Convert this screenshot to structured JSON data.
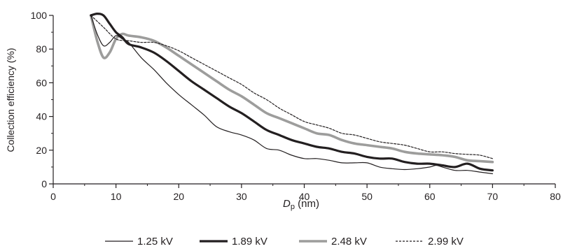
{
  "chart_data": {
    "type": "line",
    "title": "",
    "xlabel_main": "D",
    "xlabel_sub": "p",
    "xlabel_unit": " (nm)",
    "ylabel": "Collection efficiency (%)",
    "xlim": [
      0,
      80
    ],
    "ylim": [
      0,
      100
    ],
    "xticks": [
      0,
      10,
      20,
      30,
      40,
      50,
      60,
      70,
      80
    ],
    "yticks": [
      0,
      20,
      40,
      60,
      80,
      100
    ],
    "grid": false,
    "legend_position": "bottom",
    "series": [
      {
        "name": "1.25 kV",
        "color": "#231f20",
        "style": "thin",
        "x": [
          6,
          7,
          8,
          9,
          10,
          11,
          12,
          14,
          16,
          18,
          20,
          22,
          24,
          26,
          28,
          30,
          32,
          34,
          36,
          38,
          40,
          42,
          44,
          46,
          48,
          50,
          52,
          54,
          56,
          58,
          60,
          61,
          62,
          64,
          66,
          68,
          70
        ],
        "y": [
          100,
          89,
          82,
          84,
          88,
          86,
          84,
          75,
          68,
          60,
          53,
          47,
          41,
          34,
          31,
          29,
          26,
          21,
          20,
          17,
          15,
          15,
          14,
          12.5,
          12.5,
          12.5,
          10,
          9,
          8.5,
          9,
          10,
          11,
          10,
          8,
          8,
          7,
          6
        ]
      },
      {
        "name": "1.89 kV",
        "color": "#231f20",
        "style": "thick",
        "x": [
          6,
          7,
          8,
          9,
          10,
          11,
          12,
          14,
          16,
          18,
          20,
          22,
          24,
          26,
          28,
          30,
          32,
          34,
          36,
          38,
          40,
          42,
          44,
          46,
          48,
          50,
          52,
          54,
          56,
          58,
          60,
          62,
          64,
          66,
          68,
          70
        ],
        "y": [
          100,
          101,
          100,
          95,
          90,
          87,
          83,
          81,
          78,
          73,
          67,
          61,
          56,
          51,
          46,
          42,
          37,
          32,
          29,
          26,
          24,
          22,
          21,
          19,
          18,
          16,
          15,
          15,
          13,
          12,
          12,
          11,
          10,
          12,
          9,
          8
        ]
      },
      {
        "name": "2.48 kV",
        "color": "#9d9d9c",
        "style": "thick",
        "x": [
          6,
          7,
          8,
          9,
          10,
          11,
          12,
          14,
          16,
          18,
          20,
          22,
          24,
          26,
          28,
          30,
          32,
          34,
          36,
          38,
          40,
          42,
          44,
          46,
          48,
          50,
          52,
          54,
          56,
          58,
          60,
          62,
          64,
          66,
          68,
          70
        ],
        "y": [
          100,
          85,
          75,
          78,
          86,
          89,
          88,
          87,
          85,
          81,
          76,
          71,
          66,
          61,
          56,
          52,
          47,
          42,
          39,
          36,
          33,
          30,
          29,
          26,
          24,
          23,
          22,
          21,
          19,
          18,
          17.5,
          17,
          16,
          14,
          13.5,
          13
        ]
      },
      {
        "name": "2.99 kV",
        "color": "#231f20",
        "style": "dotted",
        "x": [
          6,
          8,
          10,
          12,
          14,
          16,
          18,
          20,
          22,
          24,
          26,
          28,
          30,
          32,
          34,
          36,
          38,
          40,
          42,
          44,
          46,
          48,
          50,
          52,
          54,
          56,
          58,
          60,
          62,
          64,
          66,
          68,
          70
        ],
        "y": [
          100,
          93,
          86,
          85,
          84,
          84,
          82,
          79,
          75,
          71,
          67,
          63,
          59,
          54,
          50,
          45,
          41,
          37,
          35,
          33,
          30,
          29,
          27,
          25,
          24,
          23,
          21,
          19,
          19,
          18,
          17.5,
          17,
          15
        ]
      }
    ]
  }
}
